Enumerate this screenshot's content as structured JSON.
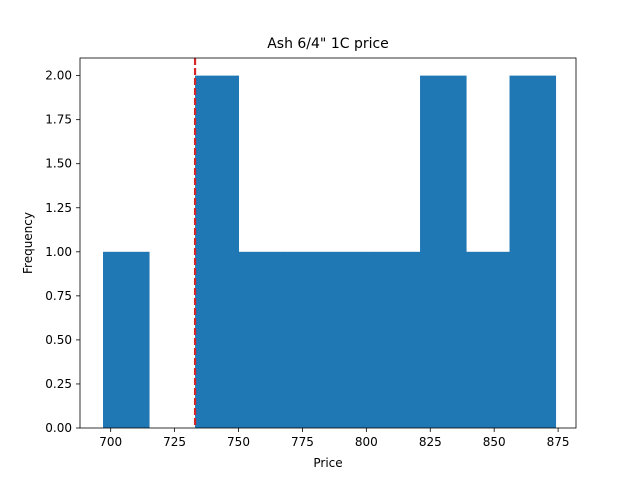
{
  "chart_data": {
    "type": "bar",
    "subtype": "histogram",
    "title": "Ash 6/4\" 1C price",
    "xlabel": "Price",
    "ylabel": "Frequency",
    "bins": [
      {
        "start": 697.0,
        "end": 715.0,
        "count": 1
      },
      {
        "start": 715.0,
        "end": 733.0,
        "count": 0
      },
      {
        "start": 733.0,
        "end": 750.0,
        "count": 2
      },
      {
        "start": 750.0,
        "end": 768.0,
        "count": 1
      },
      {
        "start": 768.0,
        "end": 786.0,
        "count": 1
      },
      {
        "start": 786.0,
        "end": 803.0,
        "count": 1
      },
      {
        "start": 803.0,
        "end": 821.0,
        "count": 1
      },
      {
        "start": 821.0,
        "end": 839.0,
        "count": 2
      },
      {
        "start": 839.0,
        "end": 856.0,
        "count": 1
      },
      {
        "start": 856.0,
        "end": 874.0,
        "count": 2
      }
    ],
    "xlim": [
      688.0,
      882.0
    ],
    "ylim": [
      0,
      2.1
    ],
    "xticks": [
      700,
      725,
      750,
      775,
      800,
      825,
      850,
      875
    ],
    "yticks": [
      "0.00",
      "0.25",
      "0.50",
      "0.75",
      "1.00",
      "1.25",
      "1.50",
      "1.75",
      "2.00"
    ],
    "reference_line": {
      "x": 733,
      "color": "#d62728",
      "style": "dashed"
    },
    "bar_color": "#1f77b4",
    "grid": false,
    "legend": "none"
  }
}
